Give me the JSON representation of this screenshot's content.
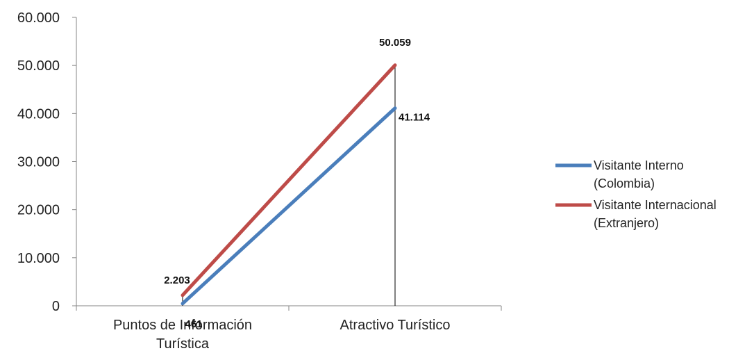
{
  "chart_data": {
    "type": "line",
    "categories": [
      "Puntos de Información Turística",
      "Atractivo Turístico"
    ],
    "category_label_lines": [
      [
        "Puntos de Información",
        "Turística"
      ],
      [
        "Atractivo Turístico"
      ]
    ],
    "series": [
      {
        "name": "Visitante Interno (Colombia)",
        "legend_lines": [
          "Visitante Interno",
          "(Colombia)"
        ],
        "values": [
          461,
          41114
        ],
        "labels": [
          "461",
          "41.114"
        ],
        "color": "#4a7ebb"
      },
      {
        "name": "Visitante Internacional (Extranjero)",
        "legend_lines": [
          "Visitante Internacional",
          "(Extranjero)"
        ],
        "values": [
          2203,
          50059
        ],
        "labels": [
          "2.203",
          "50.059"
        ],
        "color": "#be4b48"
      }
    ],
    "ylim": [
      0,
      60000
    ],
    "yticks": [
      0,
      10000,
      20000,
      30000,
      40000,
      50000,
      60000
    ],
    "ytick_labels": [
      "0",
      "10.000",
      "20.000",
      "30.000",
      "40.000",
      "50.000",
      "60.000"
    ],
    "high_low_lines": true,
    "grid": false,
    "legend_position": "right",
    "title": "",
    "xlabel": "",
    "ylabel": ""
  }
}
